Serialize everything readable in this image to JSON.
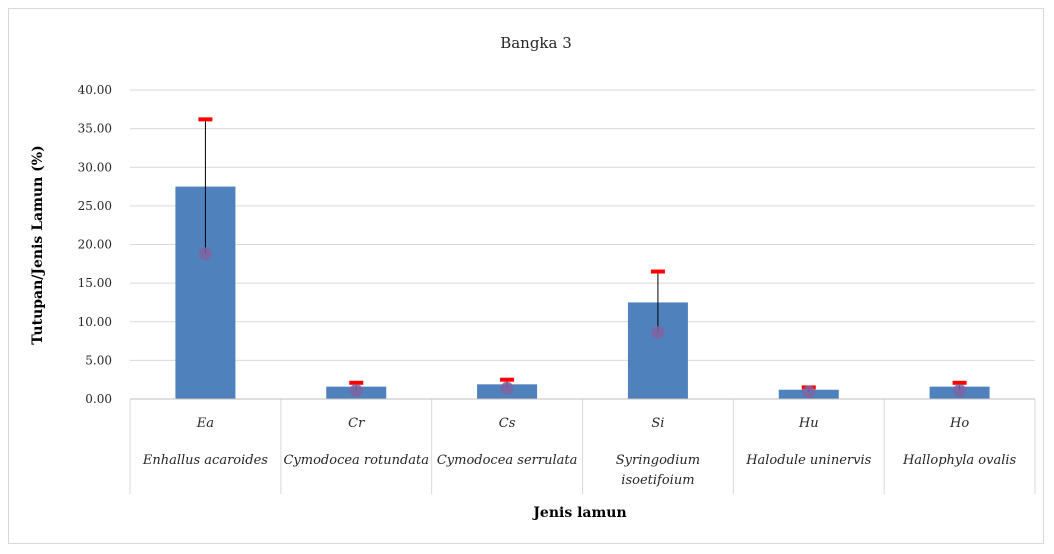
{
  "chart_data": {
    "type": "bar",
    "title": "Bangka 3",
    "xlabel": "Jenis lamun",
    "ylabel": "Tutupan/Jenis Lamun (%)",
    "ylim": [
      0,
      40
    ],
    "yticks": [
      "0.00",
      "5.00",
      "10.00",
      "15.00",
      "20.00",
      "25.00",
      "30.00",
      "35.00",
      "40.00"
    ],
    "grid": true,
    "categories": [
      {
        "code": "Ea",
        "name": [
          "Enhallus acaroides"
        ]
      },
      {
        "code": "Cr",
        "name": [
          "Cymodocea rotundata"
        ]
      },
      {
        "code": "Cs",
        "name": [
          "Cymodocea serrulata"
        ]
      },
      {
        "code": "Si",
        "name": [
          "Syringodium",
          "isoetifoium"
        ]
      },
      {
        "code": "Hu",
        "name": [
          "Halodule uninervis"
        ]
      },
      {
        "code": "Ho",
        "name": [
          "Hallophyla ovalis"
        ]
      }
    ],
    "values": [
      27.5,
      1.6,
      1.9,
      12.5,
      1.2,
      1.6
    ],
    "error_upper": [
      36.2,
      2.1,
      2.5,
      16.5,
      1.5,
      2.1
    ],
    "markers": [
      18.8,
      1.1,
      1.4,
      8.6,
      0.9,
      1.1
    ],
    "colors": {
      "bar": "#4f81bd",
      "error_cap": "#ff0000",
      "marker": "#8064a2",
      "whisker": "#000000"
    }
  }
}
